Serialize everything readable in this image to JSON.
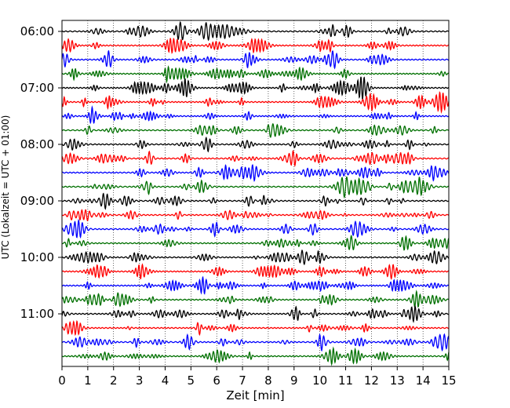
{
  "chart_data": {
    "type": "line",
    "title": "",
    "xlabel": "Zeit  [min]",
    "ylabel": "UTC (Lokalzeit = UTC + 01:00)",
    "xlim": [
      0,
      15
    ],
    "x_ticks": [
      "0",
      "1",
      "2",
      "3",
      "4",
      "5",
      "6",
      "7",
      "8",
      "9",
      "10",
      "11",
      "12",
      "13",
      "14",
      "15"
    ],
    "y_ticks": [
      "06:00",
      "07:00",
      "08:00",
      "09:00",
      "10:00",
      "11:00"
    ],
    "y_tick_traces": [
      0,
      4,
      8,
      12,
      16,
      20
    ],
    "trace_count": 24,
    "trace_colors": [
      "#000000",
      "#ff0000",
      "#0000ff",
      "#007000"
    ],
    "grid": "vertical dotted"
  }
}
